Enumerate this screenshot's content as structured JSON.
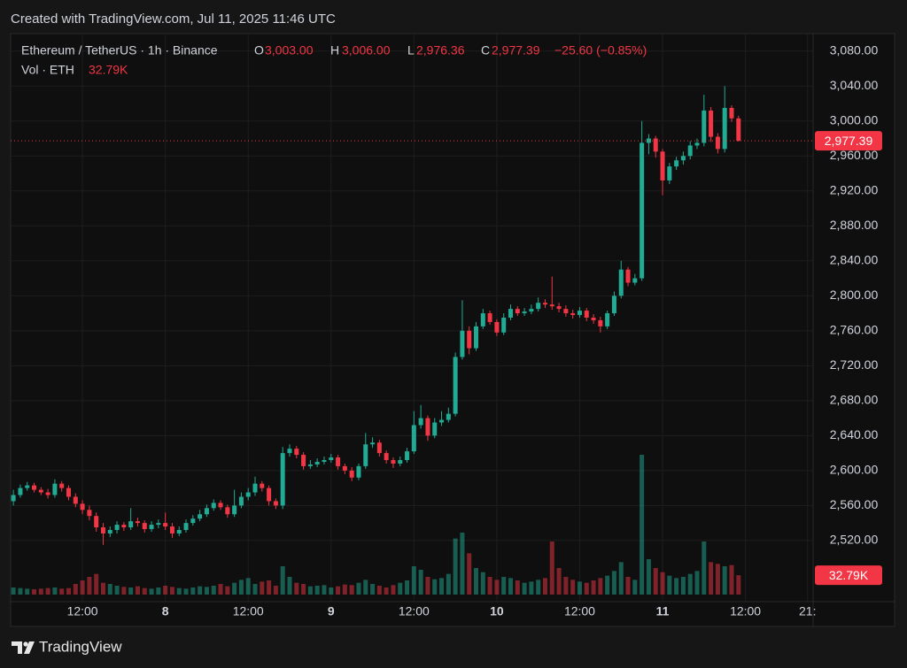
{
  "header": {
    "created": "Created with TradingView.com, Jul 11, 2025 11:46 UTC",
    "brand": "TradingView"
  },
  "chart_data": {
    "type": "candlestick",
    "symbol": "Ethereum / TetherUS · 1h · Binance",
    "ohlc_letters": [
      "O",
      "H",
      "L",
      "C"
    ],
    "last_labels": [
      "3,003.00",
      "3,006.00",
      "2,976.36",
      "2,977.39"
    ],
    "change_label": "−25.60 (−0.85%)",
    "volume_name": "Vol · ETH",
    "volume_label": "32.79K",
    "up_color": "#22ab94",
    "down_color": "#f23645",
    "grid": true,
    "ylim": [
      2450,
      3100
    ],
    "yticks": [
      {
        "value": 2520,
        "label": "2,520.00"
      },
      {
        "value": 2560,
        "label": "2,560.00"
      },
      {
        "value": 2600,
        "label": "2,600.00"
      },
      {
        "value": 2640,
        "label": "2,640.00"
      },
      {
        "value": 2680,
        "label": "2,680.00"
      },
      {
        "value": 2720,
        "label": "2,720.00"
      },
      {
        "value": 2760,
        "label": "2,760.00"
      },
      {
        "value": 2800,
        "label": "2,800.00"
      },
      {
        "value": 2840,
        "label": "2,840.00"
      },
      {
        "value": 2880,
        "label": "2,880.00"
      },
      {
        "value": 2920,
        "label": "2,920.00"
      },
      {
        "value": 2960,
        "label": "2,960.00"
      },
      {
        "value": 3000,
        "label": "3,000.00"
      },
      {
        "value": 3040,
        "label": "3,040.00"
      },
      {
        "value": 3080,
        "label": "3,080.00"
      }
    ],
    "xlim": [
      -0.4,
      115.8
    ],
    "xticks": [
      {
        "value": 10,
        "label": "12:00"
      },
      {
        "value": 22,
        "label": "8"
      },
      {
        "value": 34,
        "label": "12:00"
      },
      {
        "value": 46,
        "label": "9"
      },
      {
        "value": 58,
        "label": "12:00"
      },
      {
        "value": 70,
        "label": "10"
      },
      {
        "value": 82,
        "label": "12:00"
      },
      {
        "value": 94,
        "label": "11"
      },
      {
        "value": 106,
        "label": "12:00"
      },
      {
        "value": 115,
        "label": "21:"
      }
    ],
    "volume_lim": [
      0,
      240000
    ],
    "open": [
      2565,
      2572,
      2580,
      2583,
      2578,
      2575,
      2572,
      2585,
      2580,
      2570,
      2562,
      2555,
      2548,
      2535,
      2528,
      2532,
      2538,
      2535,
      2542,
      2540,
      2533,
      2538,
      2540,
      2536,
      2528,
      2532,
      2540,
      2545,
      2550,
      2557,
      2563,
      2558,
      2550,
      2560,
      2570,
      2575,
      2585,
      2580,
      2565,
      2560,
      2620,
      2625,
      2618,
      2605,
      2607,
      2610,
      2612,
      2615,
      2605,
      2600,
      2592,
      2605,
      2630,
      2632,
      2620,
      2612,
      2608,
      2612,
      2622,
      2652,
      2660,
      2640,
      2655,
      2658,
      2665,
      2730,
      2760,
      2740,
      2765,
      2780,
      2770,
      2758,
      2775,
      2785,
      2780,
      2782,
      2785,
      2792,
      2790,
      2788,
      2785,
      2780,
      2778,
      2783,
      2775,
      2772,
      2765,
      2780,
      2800,
      2830,
      2815,
      2820,
      2975,
      2980,
      2965,
      2932,
      2948,
      2955,
      2960,
      2972,
      2975,
      3012,
      2982,
      2968,
      3015,
      3003
    ],
    "high": [
      2578,
      2584,
      2587,
      2586,
      2581,
      2579,
      2590,
      2588,
      2583,
      2574,
      2566,
      2560,
      2552,
      2540,
      2536,
      2542,
      2541,
      2557,
      2546,
      2543,
      2542,
      2544,
      2552,
      2540,
      2536,
      2544,
      2549,
      2555,
      2561,
      2567,
      2566,
      2561,
      2578,
      2575,
      2580,
      2593,
      2588,
      2583,
      2568,
      2627,
      2630,
      2628,
      2621,
      2612,
      2614,
      2616,
      2619,
      2618,
      2608,
      2604,
      2608,
      2643,
      2638,
      2635,
      2623,
      2615,
      2616,
      2626,
      2668,
      2675,
      2663,
      2660,
      2668,
      2672,
      2735,
      2795,
      2765,
      2770,
      2785,
      2783,
      2773,
      2780,
      2790,
      2788,
      2786,
      2790,
      2798,
      2796,
      2822,
      2792,
      2789,
      2784,
      2787,
      2786,
      2779,
      2776,
      2783,
      2805,
      2840,
      2833,
      2825,
      3000,
      2985,
      2983,
      2968,
      2952,
      2959,
      2965,
      2977,
      2980,
      3030,
      3016,
      2986,
      3040,
      3018,
      3006
    ],
    "low": [
      2560,
      2569,
      2577,
      2575,
      2572,
      2568,
      2569,
      2576,
      2566,
      2558,
      2550,
      2543,
      2530,
      2515,
      2524,
      2528,
      2531,
      2532,
      2536,
      2529,
      2530,
      2534,
      2532,
      2523,
      2525,
      2529,
      2537,
      2542,
      2547,
      2554,
      2555,
      2546,
      2547,
      2557,
      2566,
      2571,
      2576,
      2560,
      2556,
      2556,
      2616,
      2614,
      2601,
      2602,
      2604,
      2607,
      2609,
      2601,
      2596,
      2588,
      2589,
      2602,
      2626,
      2616,
      2608,
      2603,
      2605,
      2609,
      2619,
      2648,
      2634,
      2637,
      2651,
      2655,
      2662,
      2727,
      2733,
      2737,
      2762,
      2767,
      2754,
      2755,
      2772,
      2777,
      2777,
      2779,
      2782,
      2786,
      2784,
      2781,
      2776,
      2774,
      2775,
      2771,
      2768,
      2758,
      2762,
      2777,
      2797,
      2811,
      2812,
      2817,
      2962,
      2958,
      2915,
      2928,
      2944,
      2950,
      2956,
      2968,
      2971,
      2976,
      2963,
      2964,
      2999,
      2976.36
    ],
    "close": [
      2572,
      2580,
      2583,
      2578,
      2575,
      2572,
      2585,
      2580,
      2570,
      2562,
      2555,
      2548,
      2535,
      2528,
      2532,
      2538,
      2535,
      2542,
      2540,
      2533,
      2538,
      2540,
      2536,
      2528,
      2532,
      2540,
      2545,
      2550,
      2557,
      2563,
      2558,
      2550,
      2560,
      2570,
      2575,
      2585,
      2580,
      2565,
      2560,
      2620,
      2625,
      2618,
      2605,
      2607,
      2610,
      2612,
      2615,
      2605,
      2600,
      2592,
      2605,
      2630,
      2632,
      2620,
      2612,
      2608,
      2612,
      2622,
      2652,
      2660,
      2640,
      2655,
      2658,
      2665,
      2730,
      2760,
      2740,
      2765,
      2780,
      2770,
      2758,
      2775,
      2785,
      2780,
      2782,
      2785,
      2792,
      2790,
      2788,
      2785,
      2780,
      2778,
      2783,
      2775,
      2772,
      2765,
      2780,
      2800,
      2830,
      2815,
      2820,
      2975,
      2980,
      2965,
      2932,
      2948,
      2955,
      2960,
      2972,
      2975,
      3012,
      2982,
      2968,
      3015,
      3003,
      2977.39
    ],
    "volume": [
      12000,
      11000,
      10000,
      9000,
      10000,
      11000,
      12000,
      10000,
      11000,
      18000,
      24000,
      30000,
      35000,
      20000,
      18000,
      15000,
      13000,
      12000,
      14000,
      11000,
      10000,
      12000,
      15000,
      13000,
      11000,
      10000,
      12000,
      14000,
      13000,
      15000,
      18000,
      14000,
      20000,
      25000,
      28000,
      18000,
      22000,
      24000,
      15000,
      48000,
      30000,
      20000,
      18000,
      14000,
      15000,
      16000,
      12000,
      14000,
      17000,
      16000,
      20000,
      25000,
      18000,
      15000,
      12000,
      16000,
      20000,
      24000,
      48000,
      42000,
      30000,
      26000,
      28000,
      35000,
      95000,
      105000,
      70000,
      45000,
      38000,
      30000,
      25000,
      30000,
      28000,
      24000,
      20000,
      22000,
      25000,
      28000,
      90000,
      45000,
      30000,
      25000,
      22000,
      20000,
      24000,
      28000,
      32000,
      40000,
      55000,
      30000,
      25000,
      237000,
      60000,
      45000,
      38000,
      32000,
      28000,
      30000,
      35000,
      40000,
      90000,
      55000,
      52000,
      48000,
      50000,
      32790
    ]
  }
}
